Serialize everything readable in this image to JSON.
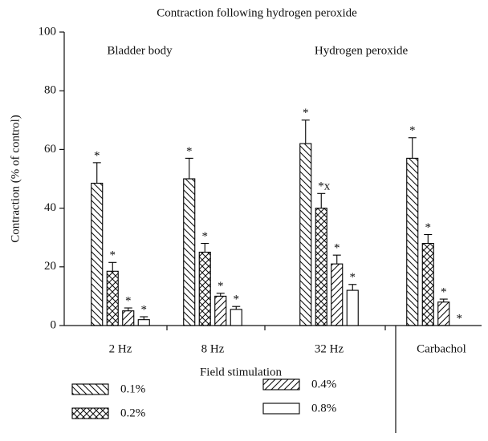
{
  "chart_data": {
    "type": "bar",
    "title": "Contraction following hydrogen peroxide",
    "y_label": "Contraction (% of control)",
    "x_label": "Field stimulation",
    "annotations": [
      "Bladder body",
      "Hydrogen peroxide"
    ],
    "categories": [
      "2 Hz",
      "8 Hz",
      "32 Hz",
      "Carbachol"
    ],
    "series": [
      {
        "name": "0.1%",
        "color": "#000000",
        "pattern": "back-diagonal",
        "values": [
          48.5,
          50,
          62,
          57
        ],
        "errors": [
          7,
          7,
          8,
          7
        ],
        "markers": [
          "*",
          "*",
          "*",
          "*"
        ]
      },
      {
        "name": "0.2%",
        "color": "#000000",
        "pattern": "cross",
        "values": [
          18.5,
          25,
          40,
          28
        ],
        "errors": [
          3,
          3,
          5,
          3
        ],
        "markers": [
          "*",
          "*",
          "*x",
          "*"
        ]
      },
      {
        "name": "0.4%",
        "color": "#000000",
        "pattern": "diagonal",
        "values": [
          5,
          10,
          21,
          8
        ],
        "errors": [
          1,
          1,
          3,
          1
        ],
        "markers": [
          "*",
          "*",
          "*",
          "*"
        ]
      },
      {
        "name": "0.8%",
        "color": "#000000",
        "pattern": "none",
        "values": [
          2,
          5.5,
          12,
          0
        ],
        "errors": [
          1,
          1,
          2,
          0
        ],
        "markers": [
          "*",
          "*",
          "*",
          "*"
        ]
      }
    ],
    "ylim": [
      0,
      100
    ],
    "yticks": [
      0,
      20,
      40,
      60,
      80,
      100
    ],
    "grid": false,
    "legend": "bottom"
  }
}
